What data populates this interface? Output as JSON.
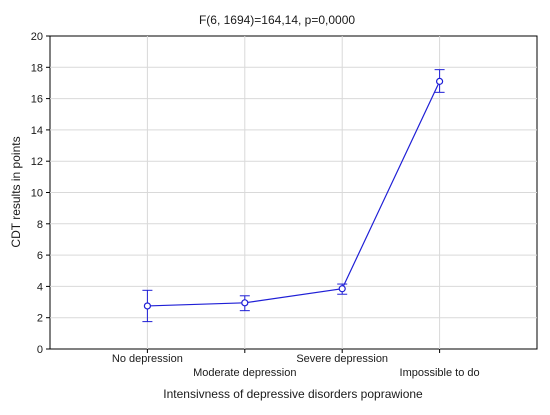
{
  "chart_data": {
    "type": "line",
    "title": "F(6, 1694)=164,14, p=0,0000",
    "xlabel": "Intensivness of depressive disorders poprawione",
    "ylabel": "CDT results in points",
    "categories": [
      "No depression",
      "Moderate depression",
      "Severe depression",
      "Impossible to do"
    ],
    "series": [
      {
        "values": [
          2.75,
          2.95,
          3.85,
          17.1
        ],
        "error_low": [
          1.75,
          2.45,
          3.5,
          16.4
        ],
        "error_high": [
          3.75,
          3.4,
          4.15,
          17.85
        ]
      }
    ],
    "ylim": [
      0,
      20
    ],
    "yticks": [
      0,
      2,
      4,
      6,
      8,
      10,
      12,
      14,
      16,
      18,
      20
    ],
    "grid": true,
    "colors": {
      "series": "#1f1fd6",
      "grid": "#d9d9d9",
      "axis": "#000000"
    }
  }
}
